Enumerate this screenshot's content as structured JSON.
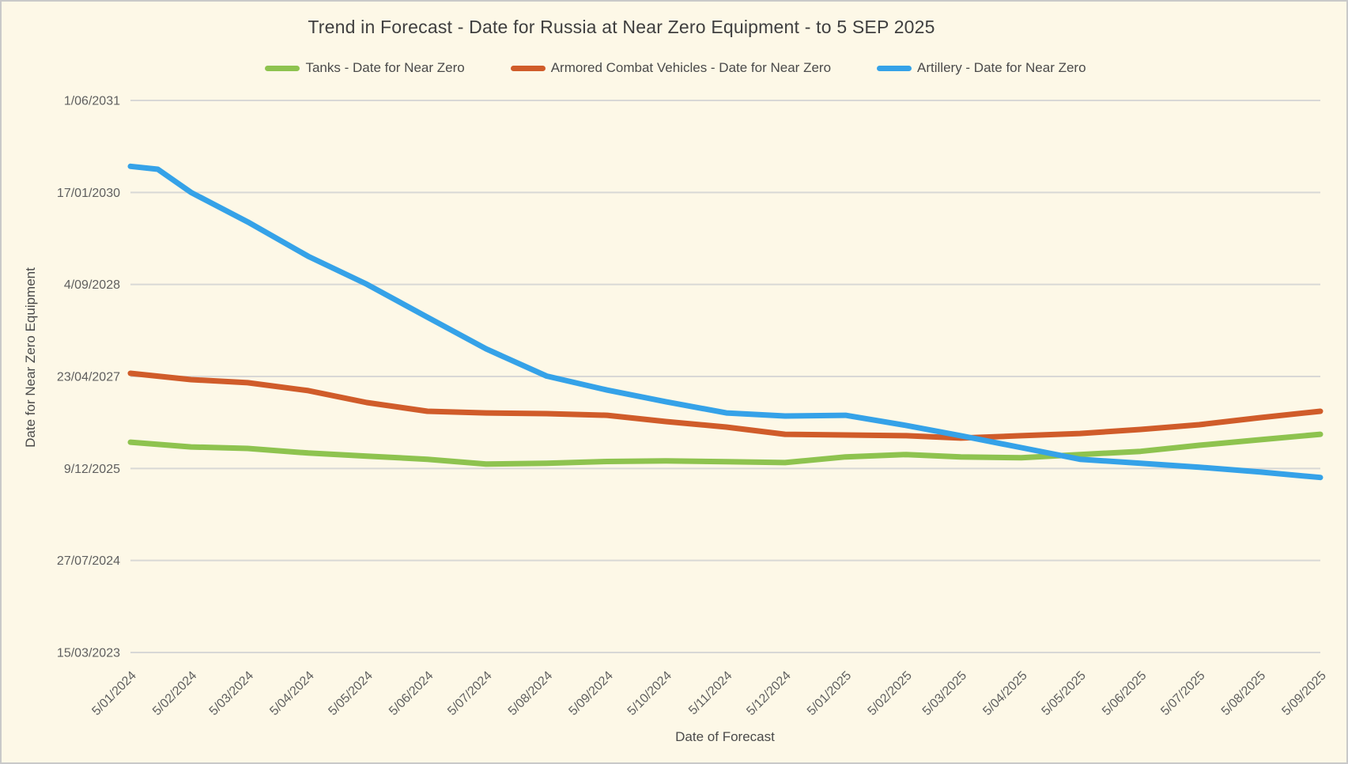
{
  "page": {
    "background": "#FDF8E7",
    "border_color": "#C9C9C9"
  },
  "chart_data": {
    "type": "line",
    "title": "Trend in Forecast - Date for Russia at Near Zero Equipment - to 5 SEP 2025",
    "xlabel": "Date of Forecast",
    "ylabel": "Date for Near Zero Equipment",
    "legend_position": "top",
    "grid": "horizontal",
    "grid_color": "#D8D8D6",
    "tick_text_color": "#5F5F5F",
    "title_color": "#3F3F3F",
    "x_range": [
      "5/01/2024",
      "5/09/2025"
    ],
    "y_range": [
      "15/03/2023",
      "1/06/2031"
    ],
    "x_tick_labels": [
      "5/01/2024",
      "5/02/2024",
      "5/03/2024",
      "5/04/2024",
      "5/05/2024",
      "5/06/2024",
      "5/07/2024",
      "5/08/2024",
      "5/09/2024",
      "5/10/2024",
      "5/11/2024",
      "5/12/2024",
      "5/01/2025",
      "5/02/2025",
      "5/03/2025",
      "5/04/2025",
      "5/05/2025",
      "5/06/2025",
      "5/07/2025",
      "5/08/2025",
      "5/09/2025"
    ],
    "y_tick_labels": [
      "15/03/2023",
      "27/07/2024",
      "9/12/2025",
      "23/04/2027",
      "4/09/2028",
      "17/01/2030",
      "1/06/2031"
    ],
    "series": [
      {
        "name": "Tanks - Date for Near Zero",
        "color": "#8EC34F",
        "points": [
          [
            "5/01/2024",
            "1/05/2026"
          ],
          [
            "5/02/2024",
            "5/04/2026"
          ],
          [
            "5/03/2024",
            "28/03/2026"
          ],
          [
            "5/04/2024",
            "3/03/2026"
          ],
          [
            "5/05/2024",
            "14/02/2026"
          ],
          [
            "5/06/2024",
            "28/01/2026"
          ],
          [
            "5/07/2024",
            "2/01/2026"
          ],
          [
            "5/08/2024",
            "6/01/2026"
          ],
          [
            "5/09/2024",
            "16/01/2026"
          ],
          [
            "5/10/2024",
            "19/01/2026"
          ],
          [
            "5/11/2024",
            "15/01/2026"
          ],
          [
            "5/12/2024",
            "10/01/2026"
          ],
          [
            "5/01/2025",
            "10/02/2026"
          ],
          [
            "5/02/2025",
            "23/02/2026"
          ],
          [
            "5/03/2025",
            "10/02/2026"
          ],
          [
            "5/04/2025",
            "5/02/2026"
          ],
          [
            "5/05/2025",
            "23/02/2026"
          ],
          [
            "5/06/2025",
            "12/03/2026"
          ],
          [
            "5/07/2025",
            "14/04/2026"
          ],
          [
            "5/08/2025",
            "14/05/2026"
          ],
          [
            "5/09/2025",
            "13/06/2026"
          ]
        ]
      },
      {
        "name": "Armored Combat Vehicles - Date for Near Zero",
        "color": "#D05C2A",
        "points": [
          [
            "5/01/2024",
            "10/05/2027"
          ],
          [
            "5/02/2024",
            "6/04/2027"
          ],
          [
            "5/03/2024",
            "20/03/2027"
          ],
          [
            "5/04/2024",
            "5/02/2027"
          ],
          [
            "5/05/2024",
            "2/12/2026"
          ],
          [
            "5/06/2024",
            "16/10/2026"
          ],
          [
            "5/07/2024",
            "7/10/2026"
          ],
          [
            "5/08/2024",
            "3/10/2026"
          ],
          [
            "5/09/2024",
            "24/09/2026"
          ],
          [
            "5/10/2024",
            "21/08/2026"
          ],
          [
            "5/11/2024",
            "22/07/2026"
          ],
          [
            "5/12/2024",
            "13/06/2026"
          ],
          [
            "5/01/2025",
            "9/06/2026"
          ],
          [
            "5/02/2025",
            "5/06/2026"
          ],
          [
            "5/03/2025",
            "23/05/2026"
          ],
          [
            "5/04/2025",
            "5/06/2026"
          ],
          [
            "5/05/2025",
            "17/06/2026"
          ],
          [
            "5/06/2025",
            "9/07/2026"
          ],
          [
            "5/07/2025",
            "4/08/2026"
          ],
          [
            "5/08/2025",
            "11/09/2026"
          ],
          [
            "5/09/2025",
            "16/10/2026"
          ]
        ]
      },
      {
        "name": "Artillery - Date for Near Zero",
        "color": "#35A2E8",
        "points": [
          [
            "5/01/2024",
            "8/06/2030"
          ],
          [
            "19/01/2024",
            "23/05/2030"
          ],
          [
            "5/02/2024",
            "17/01/2030"
          ],
          [
            "5/03/2024",
            "10/08/2029"
          ],
          [
            "5/04/2024",
            "4/02/2029"
          ],
          [
            "5/05/2024",
            "5/09/2028"
          ],
          [
            "5/06/2024",
            "10/03/2028"
          ],
          [
            "5/07/2024",
            "20/09/2027"
          ],
          [
            "5/08/2024",
            "25/04/2027"
          ],
          [
            "5/09/2024",
            "8/02/2027"
          ],
          [
            "5/10/2024",
            "7/12/2026"
          ],
          [
            "5/11/2024",
            "7/10/2026"
          ],
          [
            "5/12/2024",
            "20/09/2026"
          ],
          [
            "5/01/2025",
            "24/09/2026"
          ],
          [
            "5/02/2025",
            "31/07/2026"
          ],
          [
            "5/03/2025",
            "5/06/2026"
          ],
          [
            "5/04/2025",
            "1/04/2026"
          ],
          [
            "5/05/2025",
            "28/01/2026"
          ],
          [
            "5/06/2025",
            "6/01/2026"
          ],
          [
            "5/07/2025",
            "16/12/2025"
          ],
          [
            "5/08/2025",
            "20/11/2025"
          ],
          [
            "5/09/2025",
            "21/10/2025"
          ]
        ]
      }
    ]
  }
}
